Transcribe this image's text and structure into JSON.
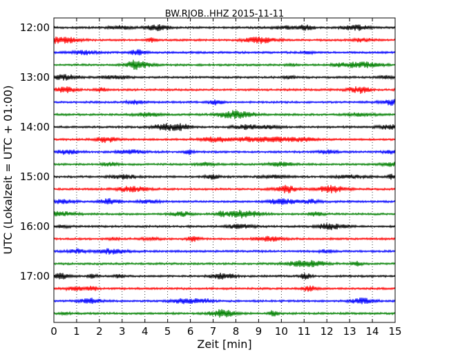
{
  "chart_data": {
    "type": "line",
    "title": "BW.RJOB..HHZ 2015-11-11",
    "xlabel": "Zeit  [min]",
    "ylabel": "UTC (Lokalzeit = UTC + 01:00)",
    "xlim": [
      0,
      15
    ],
    "x_ticks": [
      "0",
      "1",
      "2",
      "3",
      "4",
      "5",
      "6",
      "7",
      "8",
      "9",
      "10",
      "11",
      "12",
      "13",
      "14",
      "15"
    ],
    "y_tick_labels": [
      "12:00",
      "13:00",
      "14:00",
      "15:00",
      "16:00",
      "17:00"
    ],
    "trace_start_times": [
      "12:00",
      "12:15",
      "12:30",
      "12:45",
      "13:00",
      "13:15",
      "13:30",
      "13:45",
      "14:00",
      "14:15",
      "14:30",
      "14:45",
      "15:00",
      "15:15",
      "15:30",
      "15:45",
      "16:00",
      "16:15",
      "16:30",
      "16:45",
      "17:00",
      "17:15",
      "17:30",
      "17:45"
    ],
    "trace_colors": [
      "#000000",
      "#ff0000",
      "#0000ff",
      "#008000"
    ],
    "trace_interval_minutes": 15,
    "grid": "vertical dotted at x ticks"
  }
}
